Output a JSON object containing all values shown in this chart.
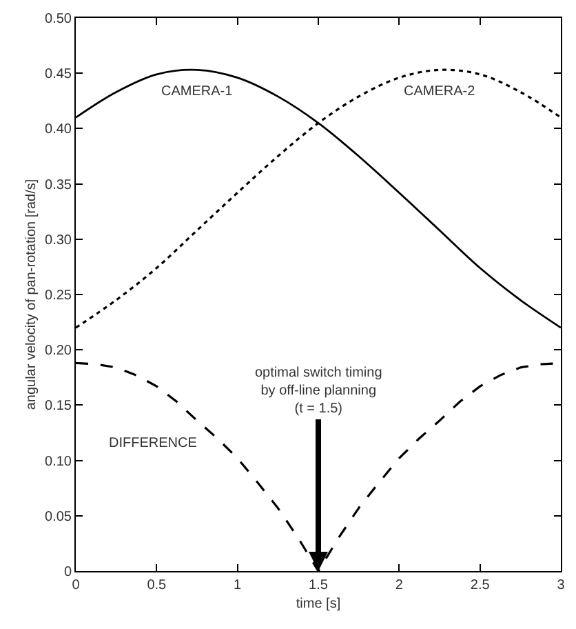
{
  "chart_data": {
    "type": "line",
    "xlabel": "time [s]",
    "ylabel": "angular velocity of pan-rotation [rad/s]",
    "x": [
      0,
      0.25,
      0.5,
      0.75,
      1.0,
      1.25,
      1.5,
      1.75,
      2.0,
      2.25,
      2.5,
      2.75,
      3.0
    ],
    "series": [
      {
        "name": "CAMERA-1",
        "color": "#000000",
        "line_style": "solid",
        "values": [
          0.41,
          0.433,
          0.449,
          0.453,
          0.446,
          0.429,
          0.405,
          0.375,
          0.342,
          0.308,
          0.274,
          0.245,
          0.22
        ]
      },
      {
        "name": "CAMERA-2",
        "color": "#000000",
        "line_style": "dotted",
        "values": [
          0.22,
          0.245,
          0.274,
          0.308,
          0.342,
          0.375,
          0.405,
          0.429,
          0.446,
          0.453,
          0.449,
          0.433,
          0.41
        ]
      },
      {
        "name": "DIFFERENCE",
        "color": "#000000",
        "line_style": "dashed",
        "x": [
          0,
          0.125,
          0.25,
          0.375,
          0.5,
          0.625,
          0.75,
          0.875,
          1.0,
          1.125,
          1.25,
          1.375,
          1.5,
          1.625,
          1.75,
          1.875,
          2.0,
          2.125,
          2.25,
          2.375,
          2.5,
          2.625,
          2.75,
          2.875,
          3.0
        ],
        "values": [
          0.188,
          0.187,
          0.184,
          0.177,
          0.167,
          0.153,
          0.136,
          0.12,
          0.102,
          0.08,
          0.057,
          0.03,
          0,
          0.03,
          0.057,
          0.08,
          0.102,
          0.12,
          0.136,
          0.153,
          0.167,
          0.177,
          0.184,
          0.187,
          0.188
        ]
      }
    ],
    "annotations": [
      {
        "text": "optimal switch timing\nby off-line planning\n(t = 1.5)",
        "x": 1.5,
        "y": 0
      }
    ],
    "xlim": [
      0,
      3
    ],
    "ylim": [
      0,
      0.5
    ],
    "xticks": [
      0,
      0.5,
      1,
      1.5,
      2,
      2.5,
      3
    ],
    "yticks": [
      0,
      0.05,
      {
        "value": 0.1,
        "label": "0.10"
      },
      0.15,
      {
        "value": 0.2,
        "label": "0.20"
      },
      0.25,
      {
        "value": 0.3,
        "label": "0.30"
      },
      0.35,
      {
        "value": 0.4,
        "label": "0.40"
      },
      0.45,
      {
        "value": 0.5,
        "label": "0.50"
      }
    ],
    "legend": false,
    "marker": "none"
  }
}
